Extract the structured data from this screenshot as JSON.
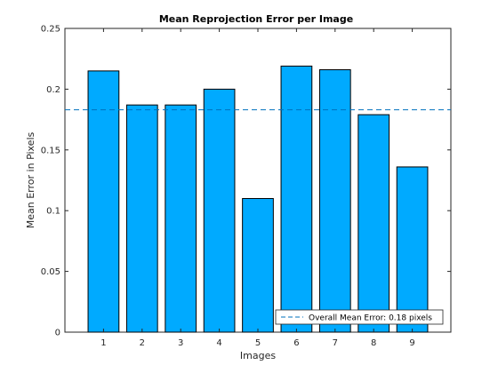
{
  "chart_data": {
    "type": "bar",
    "title": "Mean Reprojection Error per Image",
    "xlabel": "Images",
    "ylabel": "Mean Error in Pixels",
    "categories": [
      "1",
      "2",
      "3",
      "4",
      "5",
      "6",
      "7",
      "8",
      "9"
    ],
    "values": [
      0.215,
      0.187,
      0.187,
      0.2,
      0.11,
      0.219,
      0.216,
      0.179,
      0.136
    ],
    "xlim": [
      0,
      10
    ],
    "ylim": [
      0,
      0.25
    ],
    "yticks": [
      "0",
      "0.05",
      "0.1",
      "0.15",
      "0.2",
      "0.25"
    ],
    "mean_line": {
      "value": 0.183,
      "label": "Overall Mean Error: 0.18 pixels",
      "style": "dashed"
    },
    "legend_position": "bottom-right",
    "grid": false,
    "colors": {
      "bar": "#00aaff",
      "bar_edge": "#000000",
      "mean_line": "#0072bd",
      "axes": "#262626"
    }
  }
}
